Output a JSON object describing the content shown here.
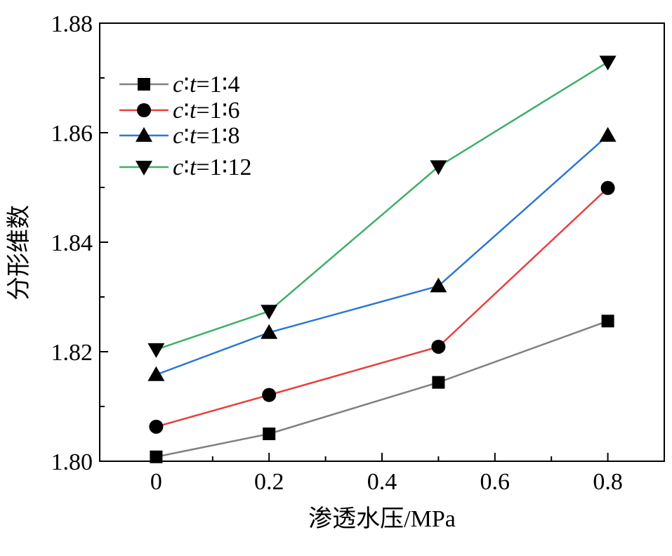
{
  "chart_data": {
    "type": "line",
    "title": "",
    "xlabel": "渗透水压/MPa",
    "ylabel": "分形维数",
    "xlim": [
      -0.1,
      0.9
    ],
    "ylim": [
      1.8,
      1.88
    ],
    "x": [
      0,
      0.2,
      0.5,
      0.8
    ],
    "xticks": [
      0,
      0.2,
      0.4,
      0.6,
      0.8
    ],
    "xtick_labels": [
      "0",
      "0.2",
      "0.4",
      "0.6",
      "0.8"
    ],
    "yticks": [
      1.8,
      1.82,
      1.84,
      1.86,
      1.88
    ],
    "ytick_labels": [
      "1.80",
      "1.82",
      "1.84",
      "1.86",
      "1.88"
    ],
    "grid": false,
    "legend_position": "top-left",
    "series": [
      {
        "name": "c∶t=1∶4",
        "color": "#808080",
        "marker": "square",
        "values": [
          1.8008,
          1.805,
          1.8144,
          1.8256
        ]
      },
      {
        "name": "c∶t=1∶6",
        "color": "#e8403e",
        "marker": "circle",
        "values": [
          1.8063,
          1.8121,
          1.8209,
          1.8499
        ]
      },
      {
        "name": "c∶t=1∶8",
        "color": "#2a78d4",
        "marker": "triangle-up",
        "values": [
          1.8158,
          1.8235,
          1.832,
          1.8595
        ]
      },
      {
        "name": "c∶t=1∶12",
        "color": "#3fae6a",
        "marker": "triangle-down",
        "values": [
          1.8204,
          1.8274,
          1.8538,
          1.8729
        ]
      }
    ]
  }
}
